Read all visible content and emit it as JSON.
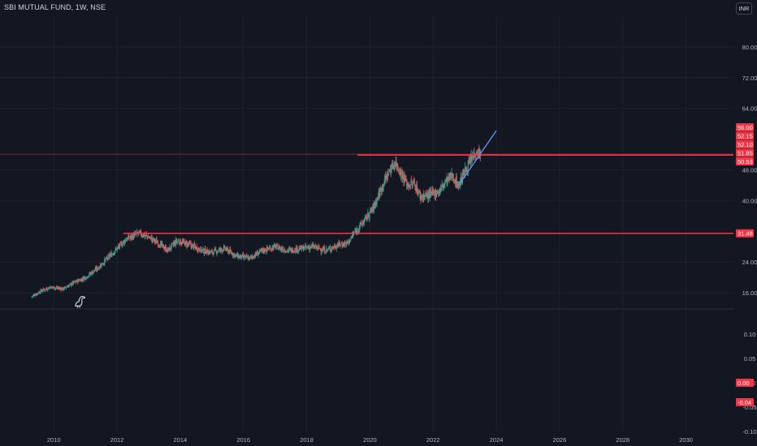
{
  "header": {
    "title": "SBI MUTUAL FUND, 1W, NSE",
    "currency": "INR"
  },
  "colors": {
    "background": "#131722",
    "up": "#26a69a",
    "down": "#ef5350",
    "hline": "#f23645",
    "trendline": "#5b9cf6",
    "grid": "#1e222d",
    "axis_text": "#b2b5be"
  },
  "icons": {
    "logo": "tradingview-dino-icon"
  },
  "chart_data": [
    {
      "type": "candlestick",
      "title": "SBI MUTUAL FUND, 1W, NSE",
      "xlabel": "",
      "ylabel": "",
      "currency": "INR",
      "xlim": [
        2008.3,
        2031.5
      ],
      "ylim": [
        12,
        88
      ],
      "x_ticks": [
        "2010",
        "2012",
        "2014",
        "2016",
        "2018",
        "2020",
        "2022",
        "2024",
        "2026",
        "2028",
        "2030"
      ],
      "y_ticks": [
        "80.00",
        "72.00",
        "64.00",
        "48.00",
        "40.00",
        "24.00",
        "16.00"
      ],
      "price_badges": [
        "56.00",
        "52.15",
        "52.10",
        "51.85",
        "50.53",
        "31.48"
      ],
      "anchors": [
        [
          2009.3,
          15.0
        ],
        [
          2009.6,
          16.5
        ],
        [
          2009.9,
          17.5
        ],
        [
          2010.3,
          17.0
        ],
        [
          2010.6,
          18.5
        ],
        [
          2011.0,
          20.0
        ],
        [
          2011.4,
          22.5
        ],
        [
          2011.7,
          25.0
        ],
        [
          2012.0,
          27.5
        ],
        [
          2012.3,
          30.0
        ],
        [
          2012.7,
          31.5
        ],
        [
          2013.0,
          30.5
        ],
        [
          2013.3,
          29.0
        ],
        [
          2013.6,
          27.0
        ],
        [
          2013.9,
          29.5
        ],
        [
          2014.3,
          28.5
        ],
        [
          2014.7,
          27.0
        ],
        [
          2015.0,
          26.5
        ],
        [
          2015.4,
          27.5
        ],
        [
          2015.8,
          25.5
        ],
        [
          2016.2,
          25.0
        ],
        [
          2016.6,
          27.0
        ],
        [
          2017.0,
          28.0
        ],
        [
          2017.4,
          27.0
        ],
        [
          2017.8,
          27.5
        ],
        [
          2018.2,
          28.0
        ],
        [
          2018.6,
          27.0
        ],
        [
          2019.0,
          28.5
        ],
        [
          2019.3,
          29.0
        ],
        [
          2019.5,
          31.5
        ],
        [
          2019.8,
          34.5
        ],
        [
          2020.1,
          38.0
        ],
        [
          2020.4,
          44.0
        ],
        [
          2020.6,
          47.5
        ],
        [
          2020.8,
          50.0
        ],
        [
          2021.0,
          47.0
        ],
        [
          2021.2,
          44.0
        ],
        [
          2021.4,
          44.5
        ],
        [
          2021.6,
          41.0
        ],
        [
          2021.9,
          41.5
        ],
        [
          2022.2,
          42.5
        ],
        [
          2022.4,
          45.0
        ],
        [
          2022.6,
          46.5
        ],
        [
          2022.8,
          44.0
        ],
        [
          2023.0,
          47.5
        ],
        [
          2023.2,
          50.5
        ],
        [
          2023.35,
          53.0
        ],
        [
          2023.5,
          52.1
        ]
      ],
      "horizontal_lines": [
        {
          "price": 51.85,
          "from_x": 2019.6
        },
        {
          "price": 31.48,
          "from_x": 2012.2
        }
      ],
      "trend_line": {
        "from": [
          2022.85,
          44.5
        ],
        "to": [
          2024.0,
          58.2
        ]
      }
    },
    {
      "type": "line",
      "title": "",
      "ylim": [
        -0.1,
        0.15
      ],
      "y_ticks": [
        "0.10",
        "0.05",
        "0.00",
        "-0.05",
        "-0.10"
      ],
      "badges": [
        "0.00",
        "-0.04"
      ]
    }
  ]
}
